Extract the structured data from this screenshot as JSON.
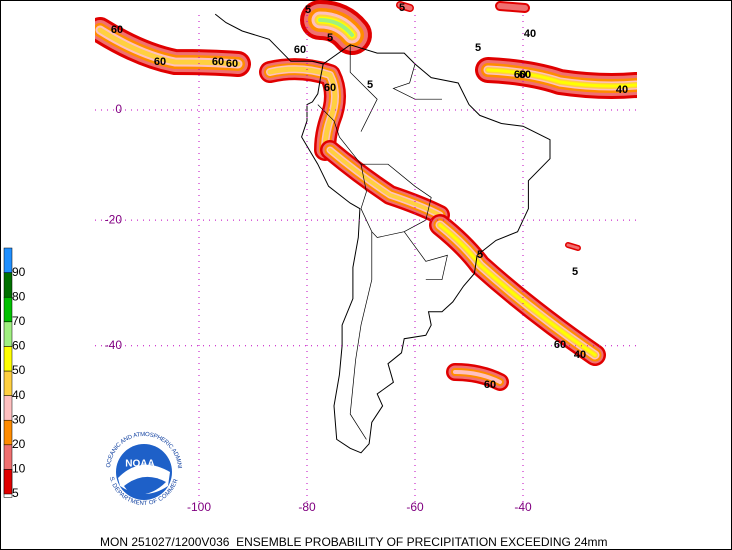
{
  "map": {
    "footer": "MON 251027/1200V036  ENSEMBLE PROBABILITY OF PRECIPITATION EXCEEDING 24mm",
    "latitudes": [
      0,
      -20,
      -40
    ],
    "longitudes": [
      -100,
      -80,
      -60,
      -40
    ],
    "colorbar": {
      "levels": [
        5,
        10,
        20,
        30,
        40,
        50,
        60,
        70,
        80,
        90
      ],
      "colors": [
        "#ffffff",
        "#e00000",
        "#f07070",
        "#ff8c00",
        "#ffc0c0",
        "#ffd040",
        "#ffff00",
        "#a0f080",
        "#00c000",
        "#007000",
        "#2090ff"
      ]
    },
    "contour_labels": [
      "60",
      "60",
      "60",
      "60",
      "5",
      "5",
      "5",
      "40",
      "60",
      "5",
      "40",
      "60",
      "5",
      "40",
      "60",
      "60",
      "5",
      "60",
      "60",
      "5"
    ],
    "logo": {
      "center": "NOAA",
      "top_arc": "NATIONAL OCEANIC AND ATMOSPHERIC ADMINISTRATION",
      "bottom_arc": "U.S. DEPARTMENT OF COMMERCE"
    }
  }
}
